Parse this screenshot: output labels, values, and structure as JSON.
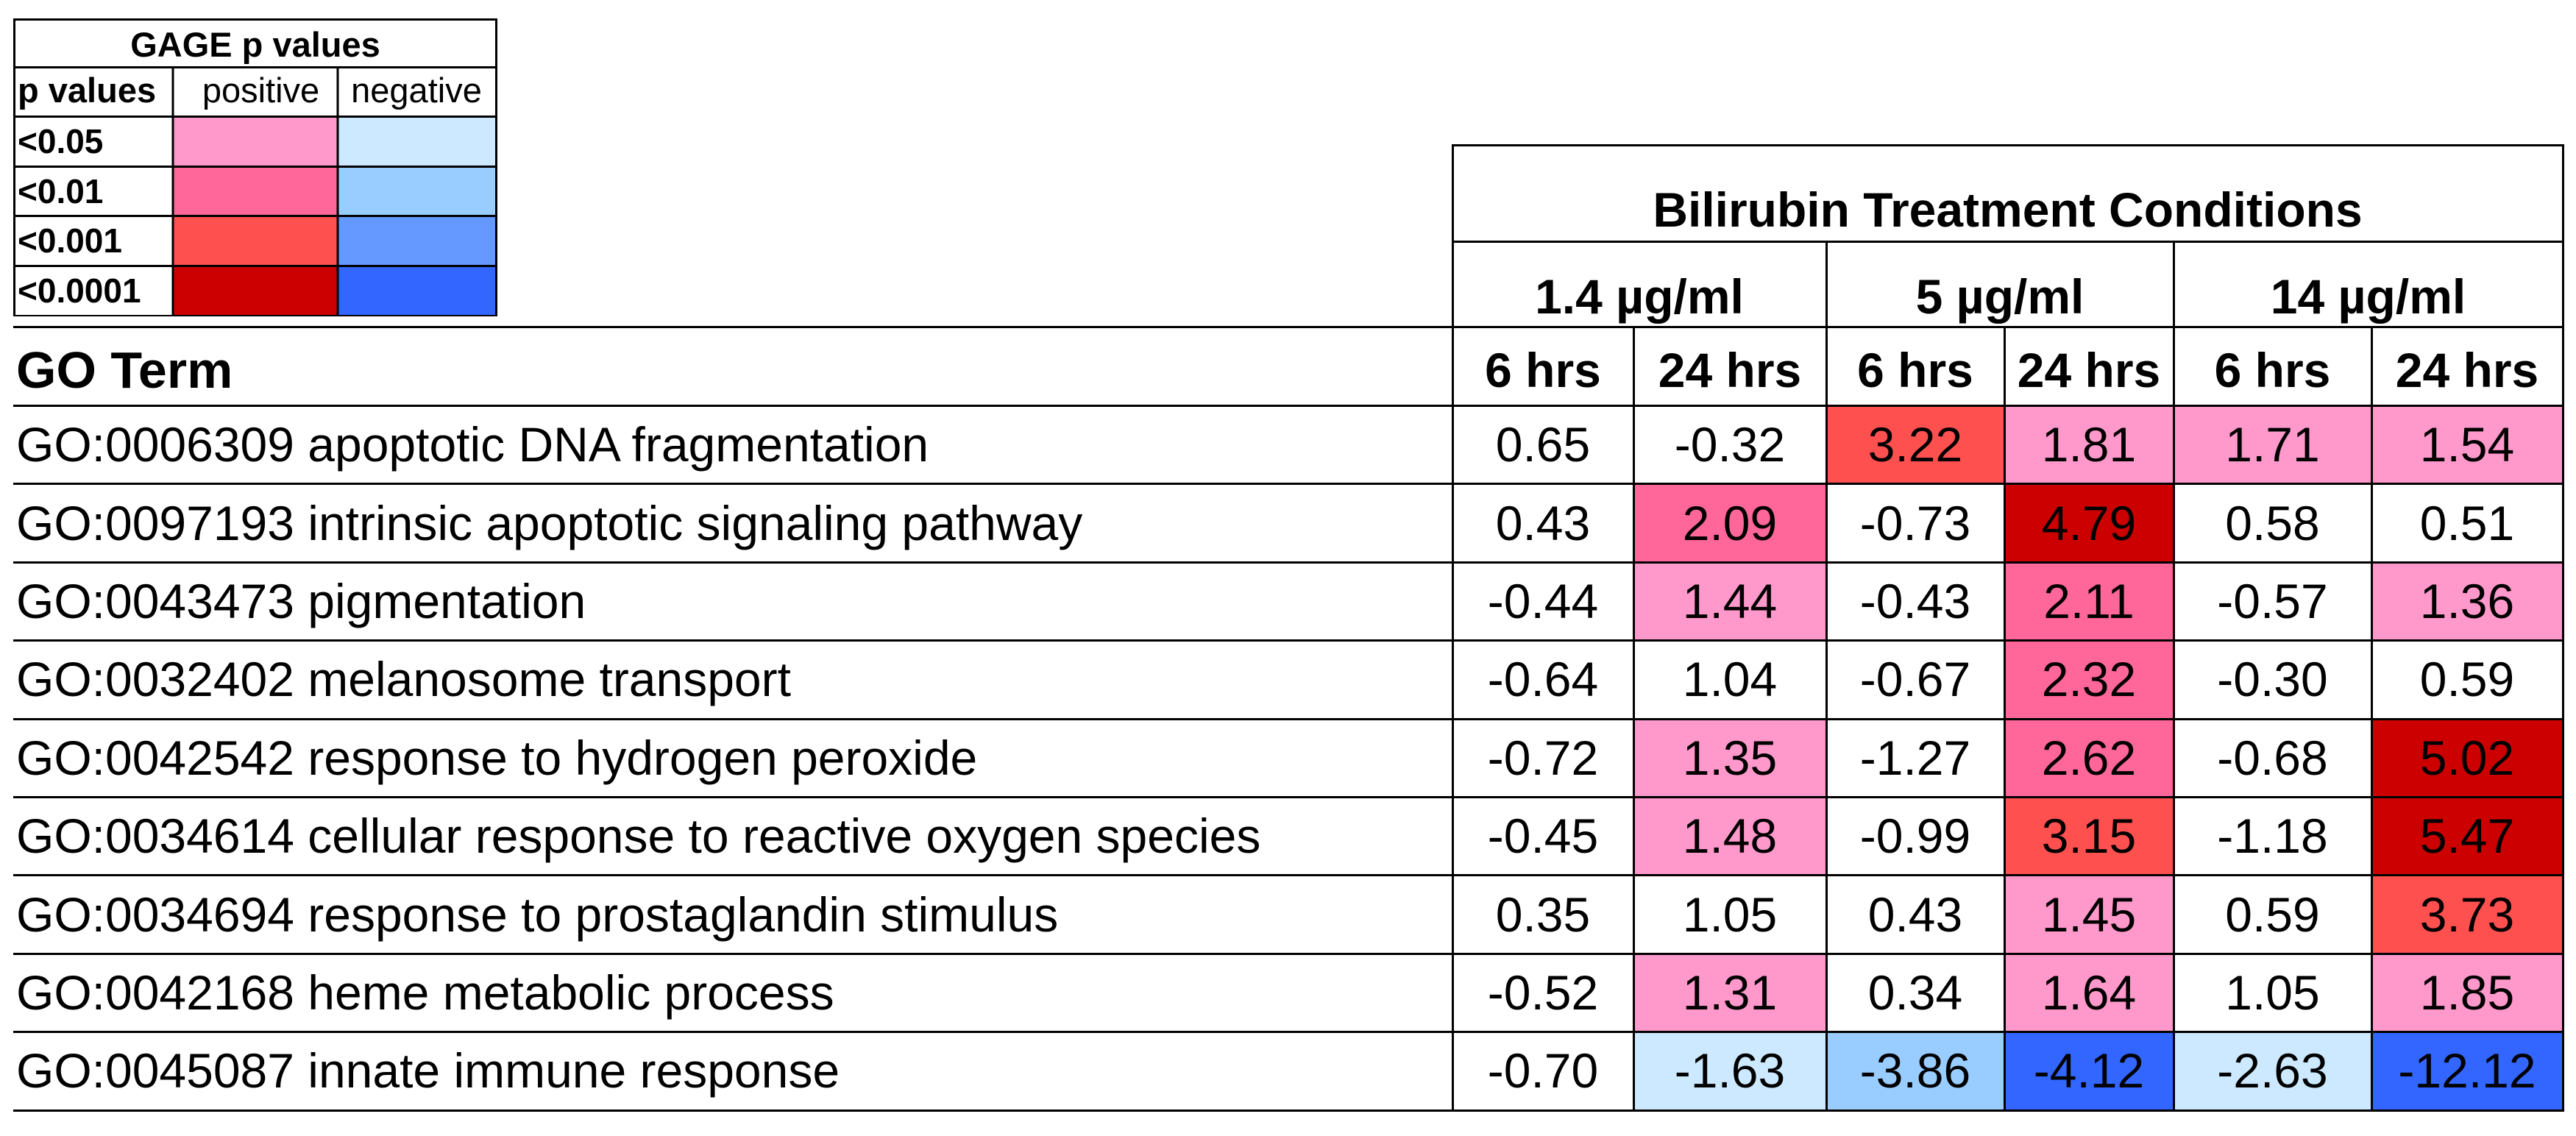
{
  "colors": {
    "pos_005": "#ff99cc",
    "pos_001": "#ff6699",
    "pos_0001": "#ff5050",
    "pos_00001": "#cc0000",
    "neg_005": "#cce9ff",
    "neg_001": "#99ccff",
    "neg_0001": "#6699ff",
    "neg_00001": "#3366ff"
  },
  "legend": {
    "title": "GAGE p values",
    "col_pvalues": "p values",
    "col_positive": "positive",
    "col_negative": "negative",
    "rows": [
      {
        "label": "<0.05",
        "pos": "pos_005",
        "neg": "neg_005"
      },
      {
        "label": "<0.01",
        "pos": "pos_001",
        "neg": "neg_001"
      },
      {
        "label": "<0.001",
        "pos": "pos_0001",
        "neg": "neg_0001"
      },
      {
        "label": "<0.0001",
        "pos": "pos_00001",
        "neg": "neg_00001"
      }
    ]
  },
  "table": {
    "title": "Bilirubin Treatment Conditions",
    "go_term_header": "GO Term",
    "concentrations": [
      "1.4 µg/ml",
      "5 µg/ml",
      "14 µg/ml"
    ],
    "times": [
      "6 hrs",
      "24 hrs",
      "6 hrs",
      "24 hrs",
      "6 hrs",
      "24 hrs"
    ],
    "rows": [
      {
        "term": "GO:0006309 apoptotic DNA fragmentation",
        "values": [
          "0.65",
          "-0.32",
          "3.22",
          "1.81",
          "1.71",
          "1.54"
        ],
        "colors": [
          null,
          null,
          "pos_0001",
          "pos_005",
          "pos_005",
          "pos_005"
        ]
      },
      {
        "term": "GO:0097193 intrinsic apoptotic signaling pathway",
        "values": [
          "0.43",
          "2.09",
          "-0.73",
          "4.79",
          "0.58",
          "0.51"
        ],
        "colors": [
          null,
          "pos_001",
          null,
          "pos_00001",
          null,
          null
        ]
      },
      {
        "term": "GO:0043473 pigmentation",
        "values": [
          "-0.44",
          "1.44",
          "-0.43",
          "2.11",
          "-0.57",
          "1.36"
        ],
        "colors": [
          null,
          "pos_005",
          null,
          "pos_001",
          null,
          "pos_005"
        ]
      },
      {
        "term": "GO:0032402 melanosome transport",
        "values": [
          "-0.64",
          "1.04",
          "-0.67",
          "2.32",
          "-0.30",
          "0.59"
        ],
        "colors": [
          null,
          null,
          null,
          "pos_001",
          null,
          null
        ]
      },
      {
        "term": "GO:0042542 response to hydrogen peroxide",
        "values": [
          "-0.72",
          "1.35",
          "-1.27",
          "2.62",
          "-0.68",
          "5.02"
        ],
        "colors": [
          null,
          "pos_005",
          null,
          "pos_001",
          null,
          "pos_00001"
        ]
      },
      {
        "term": "GO:0034614 cellular response to reactive oxygen species",
        "values": [
          "-0.45",
          "1.48",
          "-0.99",
          "3.15",
          "-1.18",
          "5.47"
        ],
        "colors": [
          null,
          "pos_005",
          null,
          "pos_0001",
          null,
          "pos_00001"
        ]
      },
      {
        "term": "GO:0034694 response to prostaglandin stimulus",
        "values": [
          "0.35",
          "1.05",
          "0.43",
          "1.45",
          "0.59",
          "3.73"
        ],
        "colors": [
          null,
          null,
          null,
          "pos_005",
          null,
          "pos_0001"
        ]
      },
      {
        "term": "GO:0042168 heme metabolic process",
        "values": [
          "-0.52",
          "1.31",
          "0.34",
          "1.64",
          "1.05",
          "1.85"
        ],
        "colors": [
          null,
          "pos_005",
          null,
          "pos_005",
          null,
          "pos_005"
        ]
      },
      {
        "term": "GO:0045087 innate immune response",
        "values": [
          "-0.70",
          "-1.63",
          "-3.86",
          "-4.12",
          "-2.63",
          "-12.12"
        ],
        "colors": [
          null,
          "neg_005",
          "neg_001",
          "neg_00001",
          "neg_005",
          "neg_00001"
        ]
      }
    ]
  }
}
